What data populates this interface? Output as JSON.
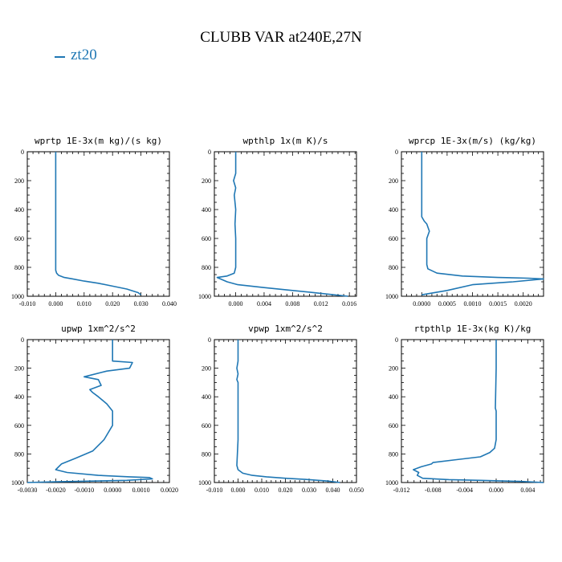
{
  "title": "CLUBB VAR at240E,27N",
  "legend": {
    "label": "zt20",
    "color": "#1f77b4"
  },
  "chart_data": [
    {
      "type": "line",
      "title": "wprtp  1E-3x(m kg)/(s kg)",
      "xlim": [
        -0.01,
        0.04
      ],
      "ylim": [
        1000,
        0
      ],
      "xticks": [
        -0.01,
        0.0,
        0.01,
        0.02,
        0.03,
        0.04
      ],
      "xtick_labels": [
        "-0.010",
        "0.000",
        "0.010",
        "0.020",
        "0.030",
        "0.040"
      ],
      "yticks": [
        0,
        200,
        400,
        600,
        800,
        1000
      ],
      "series": [
        {
          "x": [
            0.0,
            0.0,
            0.0,
            0.0,
            0.0,
            0.0,
            0.0,
            0.0003,
            0.001,
            0.003,
            0.006,
            0.01,
            0.015,
            0.02,
            0.025,
            0.029,
            0.03
          ],
          "y": [
            0,
            200,
            400,
            600,
            700,
            780,
            820,
            840,
            855,
            870,
            880,
            895,
            910,
            930,
            950,
            975,
            990
          ]
        }
      ]
    },
    {
      "type": "line",
      "title": "wpthlp  1x(m K)/s",
      "xlim": [
        -0.003,
        0.017
      ],
      "ylim": [
        1000,
        0
      ],
      "xticks": [
        0.0,
        0.004,
        0.008,
        0.012,
        0.016
      ],
      "xtick_labels": [
        "0.000",
        "0.004",
        "0.008",
        "0.012",
        "0.016"
      ],
      "yticks": [
        0,
        200,
        400,
        600,
        800,
        1000
      ],
      "series": [
        {
          "x": [
            0.0,
            0.0,
            -0.0003,
            0.0,
            -0.0002,
            0.0,
            -0.0001,
            0.0,
            0.0,
            -0.0002,
            -0.0012,
            -0.0026,
            -0.0012,
            0.0003,
            0.004,
            0.008,
            0.012,
            0.0158
          ],
          "y": [
            0,
            150,
            200,
            250,
            300,
            400,
            500,
            600,
            800,
            840,
            860,
            870,
            900,
            920,
            940,
            960,
            980,
            1000
          ]
        }
      ]
    },
    {
      "type": "line",
      "title": "wprcp  1E-3x(m/s) (kg/kg)",
      "xlim": [
        -0.0004,
        0.0024
      ],
      "ylim": [
        1000,
        0
      ],
      "xticks": [
        0.0,
        0.0005,
        0.001,
        0.0015,
        0.002
      ],
      "xtick_labels": [
        "0.0000",
        "0.0005",
        "0.0010",
        "0.0015",
        "0.0020"
      ],
      "yticks": [
        0,
        200,
        400,
        600,
        800,
        1000
      ],
      "series": [
        {
          "x": [
            0.0,
            0.0,
            0.0,
            0.0,
            5e-05,
            0.0001,
            0.00015,
            0.0001,
            0.0001,
            0.0001,
            0.00012,
            0.0003,
            0.0008,
            0.0015,
            0.0021,
            0.0024,
            0.0018,
            0.001,
            0.0005,
            0.0
          ],
          "y": [
            0,
            200,
            400,
            450,
            480,
            500,
            550,
            600,
            700,
            780,
            810,
            840,
            860,
            870,
            875,
            880,
            900,
            920,
            960,
            990
          ]
        }
      ]
    },
    {
      "type": "line",
      "title": "upwp  1xm^2/s^2",
      "xlim": [
        -0.003,
        0.002
      ],
      "ylim": [
        1000,
        0
      ],
      "xticks": [
        -0.003,
        -0.002,
        -0.001,
        0.0,
        0.001,
        0.002
      ],
      "xtick_labels": [
        "-0.0030",
        "-0.0020",
        "-0.0010",
        "0.0000",
        "0.0010",
        "0.0020"
      ],
      "yticks": [
        0,
        200,
        400,
        600,
        800,
        1000
      ],
      "series": [
        {
          "x": [
            0.0,
            0.0,
            0.0007,
            0.0006,
            -0.0002,
            -0.001,
            -0.0005,
            -0.0004,
            -0.0008,
            -0.0007,
            -0.0005,
            -0.0002,
            0.0,
            0.0,
            -0.0003,
            -0.0007,
            -0.0013,
            -0.0018,
            -0.002,
            -0.0016,
            -0.0005,
            0.0006,
            0.0013,
            0.0014,
            0.0005,
            -0.002,
            -0.003
          ],
          "y": [
            0,
            150,
            160,
            200,
            220,
            260,
            280,
            320,
            350,
            370,
            400,
            450,
            500,
            600,
            700,
            780,
            830,
            870,
            910,
            930,
            950,
            960,
            965,
            975,
            985,
            995,
            1000
          ]
        }
      ]
    },
    {
      "type": "line",
      "title": "vpwp  1xm^2/s^2",
      "xlim": [
        -0.01,
        0.05
      ],
      "ylim": [
        1000,
        0
      ],
      "xticks": [
        -0.01,
        0.0,
        0.01,
        0.02,
        0.03,
        0.04,
        0.05
      ],
      "xtick_labels": [
        "-0.010",
        "0.000",
        "0.010",
        "0.020",
        "0.030",
        "0.040",
        "0.050"
      ],
      "yticks": [
        0,
        200,
        400,
        600,
        800,
        1000
      ],
      "series": [
        {
          "x": [
            0.0,
            0.0,
            -0.0005,
            0.0,
            -0.0005,
            0.0,
            0.0,
            0.0,
            -0.0005,
            0.0,
            0.002,
            0.006,
            0.012,
            0.02,
            0.03,
            0.038,
            0.043
          ],
          "y": [
            0,
            150,
            200,
            240,
            280,
            300,
            500,
            700,
            880,
            910,
            935,
            950,
            960,
            970,
            980,
            990,
            1000
          ]
        }
      ]
    },
    {
      "type": "line",
      "title": "rtpthlp  1E-3x(kg K)/kg",
      "xlim": [
        -0.012,
        0.006
      ],
      "ylim": [
        1000,
        0
      ],
      "xticks": [
        -0.012,
        -0.008,
        -0.004,
        0.0,
        0.004
      ],
      "xtick_labels": [
        "-0.012",
        "-0.008",
        "-0.004",
        "0.000",
        "0.004"
      ],
      "yticks": [
        0,
        200,
        400,
        600,
        800,
        1000
      ],
      "series": [
        {
          "x": [
            0.0,
            0.0,
            -0.0001,
            0.0,
            0.0,
            -0.0002,
            -0.0008,
            -0.002,
            -0.005,
            -0.008,
            -0.0082,
            -0.0095,
            -0.0105,
            -0.0098,
            -0.01,
            -0.0093,
            -0.006,
            -0.002,
            0.003,
            0.006
          ],
          "y": [
            0,
            200,
            480,
            500,
            700,
            760,
            790,
            820,
            840,
            860,
            870,
            890,
            910,
            930,
            950,
            970,
            980,
            985,
            992,
            1000
          ]
        }
      ]
    }
  ]
}
